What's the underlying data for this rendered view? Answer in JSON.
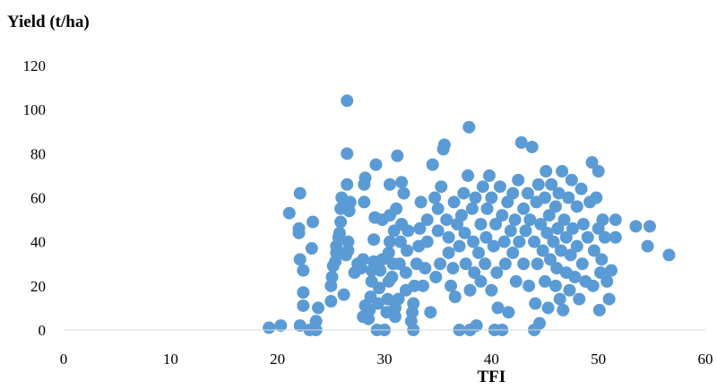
{
  "chart_data": {
    "type": "scatter",
    "ylabel": "Yield (t/ha)",
    "xlabel": "TFI",
    "xlim": [
      0,
      60
    ],
    "ylim": [
      0,
      120
    ],
    "xticks": [
      0,
      10,
      20,
      30,
      40,
      50,
      60
    ],
    "yticks": [
      0,
      20,
      40,
      60,
      80,
      100,
      120
    ],
    "marker_color": "#5b9bd5",
    "grid": false,
    "points": [
      [
        19.2,
        1
      ],
      [
        20.3,
        2
      ],
      [
        22.1,
        2
      ],
      [
        23,
        0
      ],
      [
        23.6,
        0
      ],
      [
        23.6,
        4
      ],
      [
        23.8,
        10
      ],
      [
        22.4,
        11
      ],
      [
        22.4,
        17
      ],
      [
        22.4,
        27
      ],
      [
        22.1,
        32
      ],
      [
        23.2,
        37
      ],
      [
        22,
        44
      ],
      [
        22,
        46
      ],
      [
        23.3,
        49
      ],
      [
        21.1,
        53
      ],
      [
        22.1,
        62
      ],
      [
        25,
        13
      ],
      [
        25,
        20
      ],
      [
        25.1,
        24
      ],
      [
        25.2,
        29
      ],
      [
        25.4,
        31
      ],
      [
        25.5,
        35
      ],
      [
        25.5,
        38
      ],
      [
        25.7,
        42
      ],
      [
        25.8,
        44
      ],
      [
        25.9,
        49
      ],
      [
        25.9,
        55
      ],
      [
        26,
        60
      ],
      [
        26.2,
        16
      ],
      [
        26.4,
        34
      ],
      [
        26.6,
        36
      ],
      [
        26.6,
        40
      ],
      [
        26.7,
        54
      ],
      [
        26.8,
        58
      ],
      [
        26.5,
        66
      ],
      [
        26.5,
        80
      ],
      [
        26.5,
        104
      ],
      [
        27.2,
        26
      ],
      [
        27.5,
        30
      ],
      [
        27.8,
        28
      ],
      [
        28,
        32
      ],
      [
        28.1,
        58
      ],
      [
        28.1,
        66
      ],
      [
        28.2,
        69
      ],
      [
        28,
        6
      ],
      [
        28.2,
        11
      ],
      [
        28.5,
        5
      ],
      [
        28.6,
        9
      ],
      [
        28.7,
        15
      ],
      [
        28.8,
        22
      ],
      [
        28.8,
        27
      ],
      [
        29,
        31
      ],
      [
        29,
        41
      ],
      [
        29.1,
        51
      ],
      [
        29.2,
        75
      ],
      [
        29.3,
        0
      ],
      [
        29.4,
        12
      ],
      [
        29.5,
        19
      ],
      [
        29.6,
        27
      ],
      [
        29.8,
        32
      ],
      [
        29.8,
        50
      ],
      [
        30,
        0
      ],
      [
        30.2,
        8
      ],
      [
        30.3,
        14
      ],
      [
        30.4,
        22
      ],
      [
        30.4,
        35
      ],
      [
        30.5,
        40
      ],
      [
        30.5,
        52
      ],
      [
        30.5,
        66
      ],
      [
        30.7,
        24
      ],
      [
        30.8,
        30
      ],
      [
        30.9,
        45
      ],
      [
        31,
        6
      ],
      [
        31,
        10
      ],
      [
        31.1,
        55
      ],
      [
        31.2,
        79
      ],
      [
        31.3,
        14
      ],
      [
        31.4,
        30
      ],
      [
        31.5,
        40
      ],
      [
        31.6,
        48
      ],
      [
        31.6,
        67
      ],
      [
        31.8,
        62
      ],
      [
        32,
        18
      ],
      [
        32,
        26
      ],
      [
        32.1,
        36
      ],
      [
        32.2,
        45
      ],
      [
        32.5,
        4
      ],
      [
        32.6,
        8
      ],
      [
        32.7,
        12
      ],
      [
        32.7,
        0
      ],
      [
        32.8,
        20
      ],
      [
        33,
        30
      ],
      [
        33.2,
        38
      ],
      [
        33.3,
        46
      ],
      [
        33.4,
        58
      ],
      [
        33.6,
        20
      ],
      [
        33.8,
        28
      ],
      [
        34,
        40
      ],
      [
        34,
        50
      ],
      [
        34.3,
        8
      ],
      [
        34.5,
        75
      ],
      [
        34.7,
        60
      ],
      [
        34.8,
        24
      ],
      [
        35,
        45
      ],
      [
        35,
        55
      ],
      [
        35.2,
        30
      ],
      [
        35.3,
        65
      ],
      [
        35.5,
        82
      ],
      [
        35.6,
        84
      ],
      [
        35.8,
        50
      ],
      [
        36,
        42
      ],
      [
        36,
        35
      ],
      [
        36.2,
        20
      ],
      [
        36.4,
        28
      ],
      [
        36.5,
        58
      ],
      [
        36.6,
        15
      ],
      [
        36.8,
        48
      ],
      [
        37,
        38
      ],
      [
        37,
        0
      ],
      [
        37.2,
        52
      ],
      [
        37.4,
        62
      ],
      [
        37.5,
        44
      ],
      [
        37.6,
        30
      ],
      [
        37.8,
        70
      ],
      [
        37.9,
        92
      ],
      [
        38,
        18
      ],
      [
        38,
        0
      ],
      [
        38.2,
        55
      ],
      [
        38.3,
        40
      ],
      [
        38.4,
        26
      ],
      [
        38.5,
        60
      ],
      [
        38.6,
        2
      ],
      [
        38.8,
        35
      ],
      [
        39,
        48
      ],
      [
        39,
        22
      ],
      [
        39.2,
        65
      ],
      [
        39.4,
        30
      ],
      [
        39.5,
        42
      ],
      [
        39.6,
        55
      ],
      [
        39.8,
        70
      ],
      [
        40,
        60
      ],
      [
        40,
        18
      ],
      [
        40.2,
        38
      ],
      [
        40.3,
        0
      ],
      [
        40.4,
        48
      ],
      [
        40.5,
        26
      ],
      [
        40.6,
        10
      ],
      [
        40.8,
        65
      ],
      [
        41,
        52
      ],
      [
        41,
        0
      ],
      [
        41.2,
        40
      ],
      [
        41.3,
        30
      ],
      [
        41.5,
        58
      ],
      [
        41.6,
        8
      ],
      [
        41.8,
        45
      ],
      [
        42,
        62
      ],
      [
        42,
        35
      ],
      [
        42.2,
        50
      ],
      [
        42.3,
        22
      ],
      [
        42.5,
        68
      ],
      [
        42.6,
        40
      ],
      [
        42.8,
        85
      ],
      [
        43,
        55
      ],
      [
        43,
        30
      ],
      [
        43.2,
        45
      ],
      [
        43.4,
        62
      ],
      [
        43.5,
        20
      ],
      [
        43.6,
        50
      ],
      [
        43.8,
        83
      ],
      [
        44,
        40
      ],
      [
        44,
        0
      ],
      [
        44.1,
        12
      ],
      [
        44.2,
        58
      ],
      [
        44.3,
        30
      ],
      [
        44.4,
        66
      ],
      [
        44.5,
        3
      ],
      [
        44.6,
        48
      ],
      [
        44.8,
        36
      ],
      [
        45,
        60
      ],
      [
        45,
        22
      ],
      [
        45.1,
        72
      ],
      [
        45.2,
        44
      ],
      [
        45.3,
        10
      ],
      [
        45.4,
        52
      ],
      [
        45.5,
        32
      ],
      [
        45.6,
        66
      ],
      [
        45.8,
        40
      ],
      [
        46,
        56
      ],
      [
        46,
        20
      ],
      [
        46.1,
        28
      ],
      [
        46.2,
        46
      ],
      [
        46.3,
        62
      ],
      [
        46.4,
        14
      ],
      [
        46.5,
        36
      ],
      [
        46.6,
        72
      ],
      [
        46.7,
        9
      ],
      [
        46.8,
        50
      ],
      [
        47,
        26
      ],
      [
        47,
        42
      ],
      [
        47.2,
        60
      ],
      [
        47.3,
        18
      ],
      [
        47.4,
        34
      ],
      [
        47.5,
        68
      ],
      [
        47.6,
        46
      ],
      [
        47.8,
        24
      ],
      [
        48,
        56
      ],
      [
        48,
        38
      ],
      [
        48.2,
        14
      ],
      [
        48.4,
        64
      ],
      [
        48.5,
        30
      ],
      [
        48.6,
        48
      ],
      [
        48.8,
        22
      ],
      [
        49,
        42
      ],
      [
        49.2,
        58
      ],
      [
        49.4,
        76
      ],
      [
        49.5,
        20
      ],
      [
        49.6,
        36
      ],
      [
        49.8,
        60
      ],
      [
        50,
        72
      ],
      [
        50,
        46
      ],
      [
        50.1,
        9
      ],
      [
        50.2,
        26
      ],
      [
        50.3,
        32
      ],
      [
        50.4,
        50
      ],
      [
        50.6,
        42
      ],
      [
        50.8,
        22
      ],
      [
        51,
        14
      ],
      [
        51.2,
        27
      ],
      [
        51.6,
        42
      ],
      [
        51.6,
        50
      ],
      [
        53.5,
        47
      ],
      [
        54.6,
        38
      ],
      [
        54.8,
        47
      ],
      [
        56.6,
        34
      ]
    ]
  }
}
